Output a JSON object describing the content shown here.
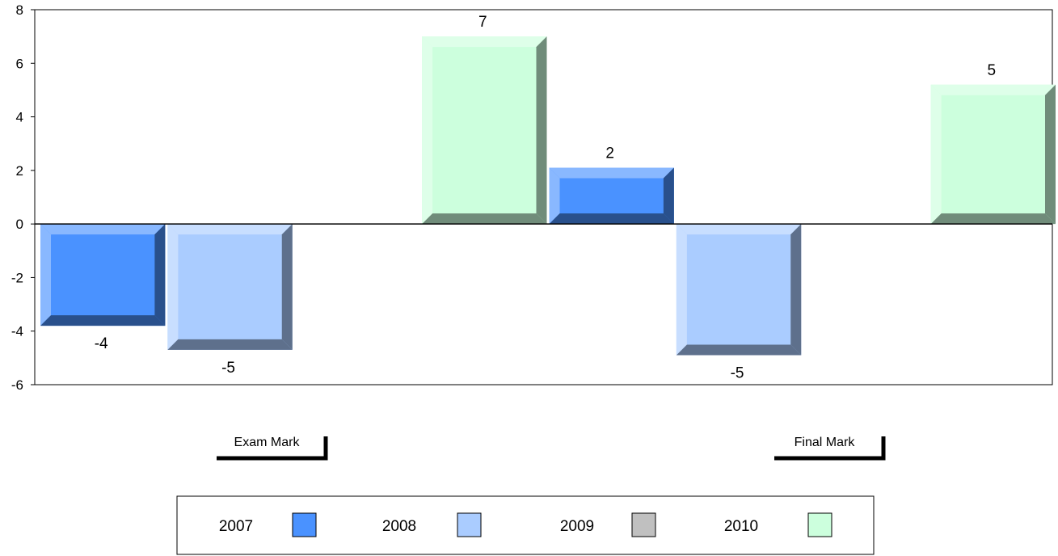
{
  "chart_data": {
    "type": "bar",
    "categories": [
      "Exam Mark",
      "Final Mark"
    ],
    "series": [
      {
        "name": "2007",
        "values": [
          -3.8,
          2.1
        ],
        "labels": [
          "-4",
          "2"
        ],
        "color": "#4a92ff"
      },
      {
        "name": "2008",
        "values": [
          -4.7,
          -4.9
        ],
        "labels": [
          "-5",
          "-5"
        ],
        "color": "#aaccff"
      },
      {
        "name": "2009",
        "values": [
          null,
          null
        ],
        "labels": [
          "",
          ""
        ],
        "color": "#c0c0c0"
      },
      {
        "name": "2010",
        "values": [
          7.0,
          5.2
        ],
        "labels": [
          "7",
          "5"
        ],
        "color": "#ccffdd"
      }
    ],
    "ylim": [
      -6,
      8
    ],
    "yticks": [
      "-6",
      "-4",
      "-2",
      "0",
      "2",
      "4",
      "6",
      "8"
    ],
    "grid": false,
    "legend_position": "bottom-center"
  }
}
